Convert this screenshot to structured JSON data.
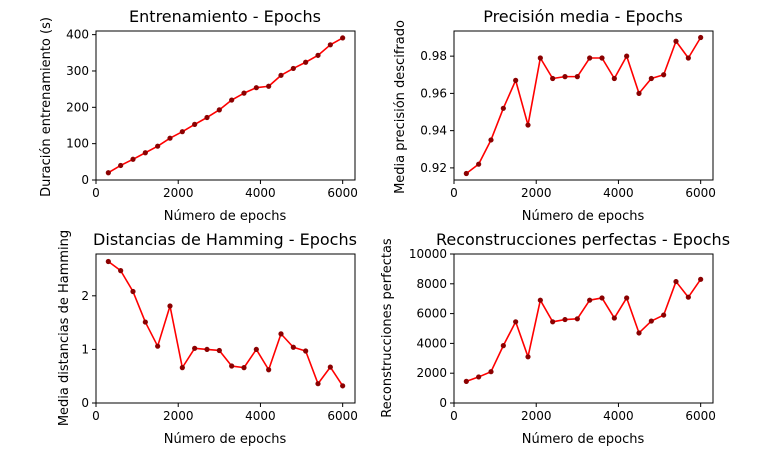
{
  "chart_data": [
    {
      "type": "line",
      "title": "Entrenamiento - Epochs",
      "xlabel": "Número de epochs",
      "ylabel": "Duración entrenamiento (s)",
      "xlim": [
        0,
        6300
      ],
      "ylim": [
        0,
        410
      ],
      "xticks": [
        0,
        2000,
        4000,
        6000
      ],
      "xtick_labels": [
        "0",
        "2000",
        "4000",
        "6000"
      ],
      "yticks": [
        0,
        100,
        200,
        300,
        400
      ],
      "ytick_labels": [
        "0",
        "100",
        "200",
        "300",
        "400"
      ],
      "grid": false,
      "series": [
        {
          "color": "#ff0000",
          "marker_color": "#8b0000",
          "x": [
            300,
            600,
            900,
            1200,
            1500,
            1800,
            2100,
            2400,
            2700,
            3000,
            3300,
            3600,
            3900,
            4200,
            4500,
            4800,
            5100,
            5400,
            5700,
            6000
          ],
          "y": [
            20,
            40,
            57,
            75,
            93,
            115,
            133,
            153,
            172,
            193,
            220,
            239,
            254,
            258,
            288,
            307,
            324,
            343,
            372,
            391
          ]
        }
      ]
    },
    {
      "type": "line",
      "title": "Precisión media - Epochs",
      "xlabel": "Número de epochs",
      "ylabel": "Media precisión descifrado",
      "xlim": [
        0,
        6300
      ],
      "ylim": [
        0.9135,
        0.9935
      ],
      "xticks": [
        0,
        2000,
        4000,
        6000
      ],
      "xtick_labels": [
        "0",
        "2000",
        "4000",
        "6000"
      ],
      "yticks": [
        0.92,
        0.94,
        0.96,
        0.98
      ],
      "ytick_labels": [
        "0.92",
        "0.94",
        "0.96",
        "0.98"
      ],
      "grid": false,
      "series": [
        {
          "color": "#ff0000",
          "marker_color": "#8b0000",
          "x": [
            300,
            600,
            900,
            1200,
            1500,
            1800,
            2100,
            2400,
            2700,
            3000,
            3300,
            3600,
            3900,
            4200,
            4500,
            4800,
            5100,
            5400,
            5700,
            6000
          ],
          "y": [
            0.917,
            0.922,
            0.935,
            0.952,
            0.967,
            0.943,
            0.979,
            0.968,
            0.969,
            0.969,
            0.979,
            0.979,
            0.968,
            0.98,
            0.96,
            0.968,
            0.97,
            0.988,
            0.979,
            0.99
          ]
        }
      ]
    },
    {
      "type": "line",
      "title": "Distancias de Hamming - Epochs",
      "xlabel": "Número de epochs",
      "ylabel": "Media distancias de Hamming",
      "xlim": [
        0,
        6300
      ],
      "ylim": [
        0,
        2.78
      ],
      "xticks": [
        0,
        2000,
        4000,
        6000
      ],
      "xtick_labels": [
        "0",
        "2000",
        "4000",
        "6000"
      ],
      "yticks": [
        0,
        1,
        2
      ],
      "ytick_labels": [
        "0",
        "1",
        "2"
      ],
      "grid": false,
      "series": [
        {
          "color": "#ff0000",
          "marker_color": "#8b0000",
          "x": [
            300,
            600,
            900,
            1200,
            1500,
            1800,
            2100,
            2400,
            2700,
            3000,
            3300,
            3600,
            3900,
            4200,
            4500,
            4800,
            5100,
            5400,
            5700,
            6000
          ],
          "y": [
            2.64,
            2.47,
            2.08,
            1.51,
            1.06,
            1.81,
            0.66,
            1.02,
            1.0,
            0.98,
            0.69,
            0.66,
            1.0,
            0.62,
            1.29,
            1.04,
            0.97,
            0.36,
            0.67,
            0.32
          ]
        }
      ]
    },
    {
      "type": "line",
      "title": "Reconstrucciones perfectas - Epochs",
      "xlabel": "Número de epochs",
      "ylabel": "Reconstrucciones perfectas",
      "xlim": [
        0,
        6300
      ],
      "ylim": [
        0,
        10000
      ],
      "xticks": [
        0,
        2000,
        4000,
        6000
      ],
      "xtick_labels": [
        "0",
        "2000",
        "4000",
        "6000"
      ],
      "yticks": [
        0,
        2000,
        4000,
        6000,
        8000,
        10000
      ],
      "ytick_labels": [
        "0",
        "2000",
        "4000",
        "6000",
        "8000",
        "10000"
      ],
      "grid": false,
      "series": [
        {
          "color": "#ff0000",
          "marker_color": "#8b0000",
          "x": [
            300,
            600,
            900,
            1200,
            1500,
            1800,
            2100,
            2400,
            2700,
            3000,
            3300,
            3600,
            3900,
            4200,
            4500,
            4800,
            5100,
            5400,
            5700,
            6000
          ],
          "y": [
            1450,
            1750,
            2100,
            3850,
            5450,
            3100,
            6900,
            5450,
            5600,
            5650,
            6900,
            7050,
            5700,
            7050,
            4700,
            5500,
            5900,
            8150,
            7100,
            8300
          ]
        }
      ]
    }
  ]
}
